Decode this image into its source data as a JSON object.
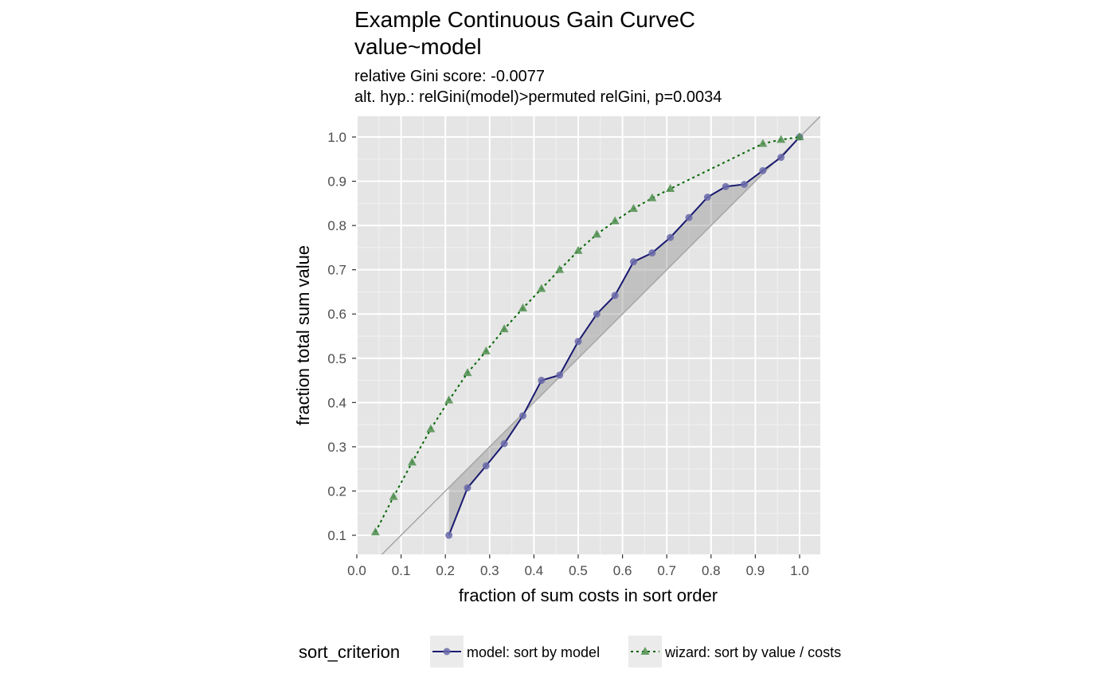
{
  "title_line1": "Example Continuous Gain CurveC",
  "title_line2": "value~model",
  "subtitle_line1": "relative Gini score: -0.0077",
  "subtitle_line2": "alt. hyp.: relGini(model)>permuted relGini, p=0.0034",
  "chart_data": {
    "type": "line",
    "xlabel": "fraction of sum costs  in sort order",
    "ylabel": "fraction total sum value",
    "xlim": [
      0.0,
      1.0
    ],
    "ylim": [
      0.1,
      1.0
    ],
    "x_ticks": [
      "0.0",
      "0.1",
      "0.2",
      "0.3",
      "0.4",
      "0.5",
      "0.6",
      "0.7",
      "0.8",
      "0.9",
      "1.0"
    ],
    "y_ticks": [
      "0.1",
      "0.2",
      "0.3",
      "0.4",
      "0.5",
      "0.6",
      "0.7",
      "0.8",
      "0.9",
      "1.0"
    ],
    "grid": true,
    "legend_title": "sort_criterion",
    "legend_position": "bottom",
    "diagonal_reference": true,
    "shaded_area_between_model_and_diagonal": true,
    "series": [
      {
        "name": "model: sort by model",
        "color": "#191970",
        "line_style": "solid",
        "marker": "circle",
        "x": [
          0.208,
          0.25,
          0.292,
          0.333,
          0.375,
          0.417,
          0.458,
          0.5,
          0.542,
          0.583,
          0.625,
          0.667,
          0.708,
          0.75,
          0.792,
          0.833,
          0.875,
          0.917,
          0.958,
          1.0
        ],
        "y": [
          0.1,
          0.207,
          0.257,
          0.307,
          0.37,
          0.45,
          0.462,
          0.538,
          0.6,
          0.642,
          0.718,
          0.738,
          0.773,
          0.818,
          0.864,
          0.888,
          0.893,
          0.924,
          0.954,
          1.0
        ]
      },
      {
        "name": "wizard: sort by  value / costs",
        "color": "#006400",
        "line_style": "dotted",
        "marker": "triangle",
        "x": [
          0.042,
          0.083,
          0.125,
          0.167,
          0.208,
          0.25,
          0.292,
          0.333,
          0.375,
          0.417,
          0.458,
          0.5,
          0.542,
          0.583,
          0.625,
          0.667,
          0.708,
          0.917,
          0.958,
          1.0
        ],
        "y": [
          0.107,
          0.187,
          0.265,
          0.34,
          0.405,
          0.467,
          0.516,
          0.566,
          0.613,
          0.657,
          0.7,
          0.743,
          0.78,
          0.81,
          0.838,
          0.862,
          0.883,
          0.985,
          0.994,
          1.0
        ]
      }
    ]
  }
}
